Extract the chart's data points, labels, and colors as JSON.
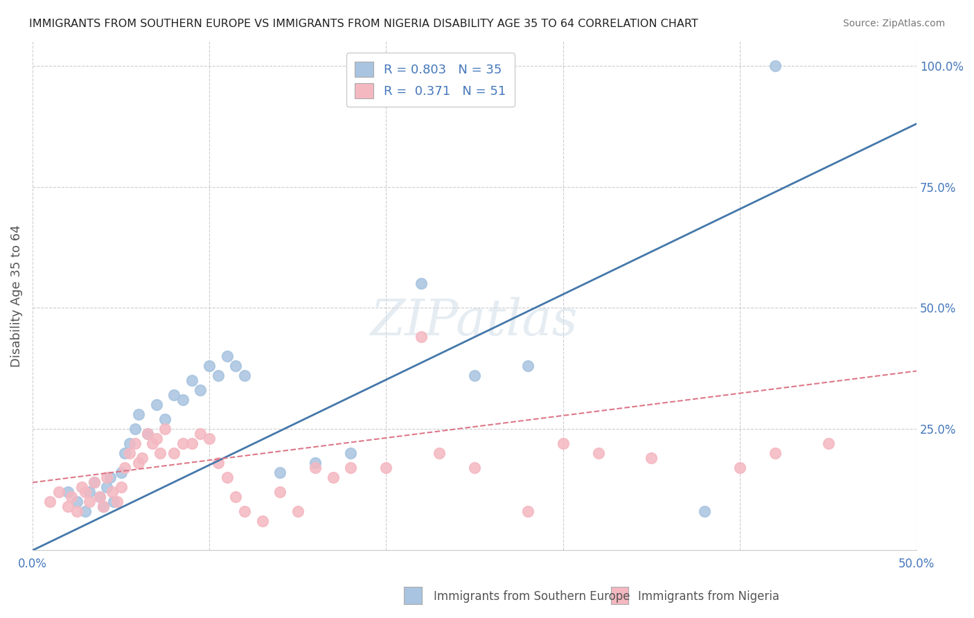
{
  "title": "IMMIGRANTS FROM SOUTHERN EUROPE VS IMMIGRANTS FROM NIGERIA DISABILITY AGE 35 TO 64 CORRELATION CHART",
  "source": "Source: ZipAtlas.com",
  "ylabel": "Disability Age 35 to 64",
  "xlabel": "",
  "xlim": [
    0.0,
    0.5
  ],
  "ylim": [
    0.0,
    1.05
  ],
  "xticks": [
    0.0,
    0.1,
    0.2,
    0.3,
    0.4,
    0.5
  ],
  "xticklabels": [
    "0.0%",
    "",
    "",
    "",
    "",
    "50.0%"
  ],
  "yticks_right": [
    0.0,
    0.25,
    0.5,
    0.75,
    1.0
  ],
  "yticklabels_right": [
    "",
    "25.0%",
    "50.0%",
    "75.0%",
    "100.0%"
  ],
  "blue_R": 0.803,
  "blue_N": 35,
  "pink_R": 0.371,
  "pink_N": 51,
  "blue_color": "#a8c4e0",
  "blue_line_color": "#4477aa",
  "pink_color": "#f4b8c1",
  "pink_line_color": "#dd7788",
  "watermark": "ZIPatlas",
  "legend_R_color": "#4477bb",
  "blue_scatter_x": [
    0.02,
    0.025,
    0.03,
    0.032,
    0.035,
    0.038,
    0.04,
    0.042,
    0.044,
    0.046,
    0.05,
    0.052,
    0.055,
    0.058,
    0.06,
    0.065,
    0.07,
    0.075,
    0.08,
    0.085,
    0.09,
    0.095,
    0.1,
    0.105,
    0.11,
    0.115,
    0.12,
    0.14,
    0.16,
    0.18,
    0.22,
    0.25,
    0.28,
    0.38,
    0.42
  ],
  "blue_scatter_y": [
    0.12,
    0.1,
    0.08,
    0.12,
    0.14,
    0.11,
    0.09,
    0.13,
    0.15,
    0.1,
    0.16,
    0.2,
    0.22,
    0.25,
    0.28,
    0.24,
    0.3,
    0.27,
    0.32,
    0.31,
    0.35,
    0.33,
    0.38,
    0.36,
    0.4,
    0.38,
    0.36,
    0.16,
    0.18,
    0.2,
    0.55,
    0.36,
    0.38,
    0.08,
    1.0
  ],
  "pink_scatter_x": [
    0.01,
    0.015,
    0.02,
    0.022,
    0.025,
    0.028,
    0.03,
    0.032,
    0.035,
    0.038,
    0.04,
    0.042,
    0.045,
    0.048,
    0.05,
    0.052,
    0.055,
    0.058,
    0.06,
    0.062,
    0.065,
    0.068,
    0.07,
    0.072,
    0.075,
    0.08,
    0.085,
    0.09,
    0.095,
    0.1,
    0.105,
    0.11,
    0.115,
    0.12,
    0.13,
    0.14,
    0.15,
    0.16,
    0.17,
    0.18,
    0.2,
    0.22,
    0.23,
    0.25,
    0.28,
    0.3,
    0.32,
    0.35,
    0.4,
    0.42,
    0.45
  ],
  "pink_scatter_y": [
    0.1,
    0.12,
    0.09,
    0.11,
    0.08,
    0.13,
    0.12,
    0.1,
    0.14,
    0.11,
    0.09,
    0.15,
    0.12,
    0.1,
    0.13,
    0.17,
    0.2,
    0.22,
    0.18,
    0.19,
    0.24,
    0.22,
    0.23,
    0.2,
    0.25,
    0.2,
    0.22,
    0.22,
    0.24,
    0.23,
    0.18,
    0.15,
    0.11,
    0.08,
    0.06,
    0.12,
    0.08,
    0.17,
    0.15,
    0.17,
    0.17,
    0.44,
    0.2,
    0.17,
    0.08,
    0.22,
    0.2,
    0.19,
    0.17,
    0.2,
    0.22
  ],
  "blue_line_x": [
    0.0,
    0.5
  ],
  "blue_line_y": [
    0.0,
    0.88
  ],
  "pink_line_x": [
    0.0,
    0.5
  ],
  "pink_line_y": [
    0.14,
    0.37
  ]
}
